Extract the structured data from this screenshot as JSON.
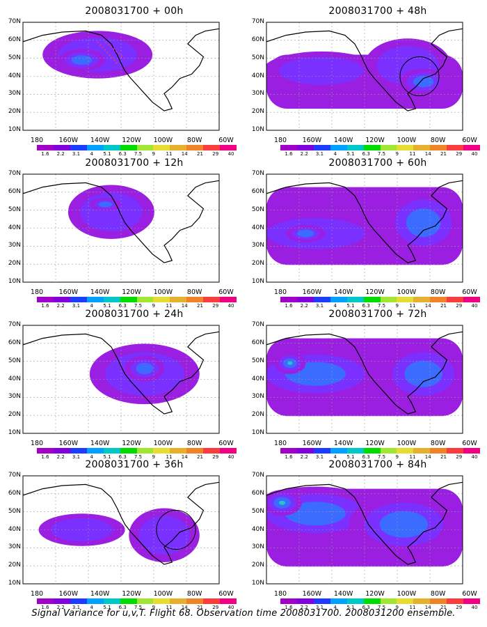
{
  "panels": [
    {
      "title": "2008031700 + 00h",
      "level": 1,
      "blobs": [
        [
          0.38,
          0.3,
          0.28,
          0.22,
          2
        ],
        [
          0.3,
          0.35,
          0.12,
          0.1,
          3
        ]
      ],
      "route": true,
      "circle": false
    },
    {
      "title": "2008031700 + 48h",
      "level": 2,
      "blobs": [
        [
          0.28,
          0.45,
          0.3,
          0.18,
          2
        ],
        [
          0.72,
          0.4,
          0.22,
          0.25,
          2
        ],
        [
          0.8,
          0.55,
          0.12,
          0.12,
          3
        ]
      ],
      "route": false,
      "circle": true
    },
    {
      "title": "2008031700 + 12h",
      "level": 1,
      "blobs": [
        [
          0.45,
          0.35,
          0.22,
          0.25,
          2
        ],
        [
          0.42,
          0.28,
          0.08,
          0.06,
          3
        ]
      ],
      "route": false,
      "circle": false
    },
    {
      "title": "2008031700 + 60h",
      "level": 3,
      "blobs": [
        [
          0.25,
          0.55,
          0.35,
          0.2,
          2
        ],
        [
          0.2,
          0.55,
          0.1,
          0.08,
          3
        ],
        [
          0.8,
          0.45,
          0.2,
          0.3,
          3
        ]
      ],
      "route": false,
      "circle": false
    },
    {
      "title": "2008031700 + 24h",
      "level": 1,
      "blobs": [
        [
          0.62,
          0.45,
          0.28,
          0.28,
          2
        ],
        [
          0.62,
          0.4,
          0.1,
          0.12,
          3
        ]
      ],
      "route": false,
      "circle": false
    },
    {
      "title": "2008031700 + 72h",
      "level": 3,
      "blobs": [
        [
          0.25,
          0.45,
          0.35,
          0.25,
          3
        ],
        [
          0.12,
          0.35,
          0.08,
          0.1,
          4
        ],
        [
          0.8,
          0.45,
          0.22,
          0.28,
          3
        ]
      ],
      "route": false,
      "circle": false
    },
    {
      "title": "2008031700 + 36h",
      "level": 1,
      "blobs": [
        [
          0.3,
          0.5,
          0.22,
          0.15,
          2
        ],
        [
          0.72,
          0.55,
          0.18,
          0.25,
          2
        ]
      ],
      "route": false,
      "circle": true
    },
    {
      "title": "2008031700 + 84h",
      "level": 3,
      "blobs": [
        [
          0.25,
          0.35,
          0.35,
          0.25,
          3
        ],
        [
          0.08,
          0.25,
          0.1,
          0.12,
          4
        ],
        [
          0.7,
          0.45,
          0.28,
          0.28,
          3
        ]
      ],
      "route": false,
      "circle": false
    }
  ],
  "lat_labels": [
    "70N",
    "60N",
    "50N",
    "40N",
    "30N",
    "20N",
    "10N"
  ],
  "lon_labels": [
    "180",
    "160W",
    "140W",
    "120W",
    "100W",
    "80W",
    "60W"
  ],
  "colorbar_labels": [
    "1.6",
    "2.2",
    "3.1",
    "4",
    "5.1",
    "6.3",
    "7.5",
    "9",
    "11",
    "14",
    "21",
    "29",
    "40"
  ],
  "colorbar_colors": [
    "#a000c8",
    "#8200dc",
    "#1e3cff",
    "#00a0ff",
    "#00c8c8",
    "#00dc00",
    "#a0e632",
    "#e6dc32",
    "#e6af2d",
    "#f08228",
    "#fa3c3c",
    "#f00082"
  ],
  "field_colors": [
    "#ffffff",
    "#9a1fe0",
    "#7a30ff",
    "#3c6bff",
    "#27c4c8",
    "#2bd36a"
  ],
  "caption": "Signal Variance for u,v,T. Flight 68. Observation time 2008031700. 2008031200 ensemble."
}
